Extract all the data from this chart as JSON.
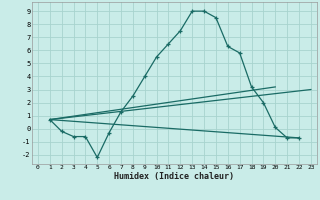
{
  "xlabel": "Humidex (Indice chaleur)",
  "background_color": "#c9ece8",
  "grid_color": "#a8d4ce",
  "line_color": "#1a6b65",
  "xlim": [
    -0.5,
    23.5
  ],
  "ylim": [
    -2.7,
    9.7
  ],
  "xticks": [
    0,
    1,
    2,
    3,
    4,
    5,
    6,
    7,
    8,
    9,
    10,
    11,
    12,
    13,
    14,
    15,
    16,
    17,
    18,
    19,
    20,
    21,
    22,
    23
  ],
  "yticks": [
    -2,
    -1,
    0,
    1,
    2,
    3,
    4,
    5,
    6,
    7,
    8,
    9
  ],
  "curve_x": [
    1,
    2,
    3,
    4,
    5,
    6,
    7,
    8,
    9,
    10,
    11,
    12,
    13,
    14,
    15,
    16,
    17,
    18,
    19,
    20,
    21,
    22
  ],
  "curve_y": [
    0.7,
    -0.2,
    -0.6,
    -0.6,
    -2.2,
    -0.3,
    1.3,
    2.5,
    4.0,
    5.5,
    6.5,
    7.5,
    9.0,
    9.0,
    8.5,
    6.3,
    5.8,
    3.2,
    2.0,
    0.1,
    -0.7,
    -0.7
  ],
  "line1_x": [
    1,
    22
  ],
  "line1_y": [
    0.7,
    -0.7
  ],
  "line2_x": [
    1,
    20
  ],
  "line2_y": [
    0.7,
    3.2
  ],
  "line3_x": [
    1,
    23
  ],
  "line3_y": [
    0.7,
    3.0
  ]
}
